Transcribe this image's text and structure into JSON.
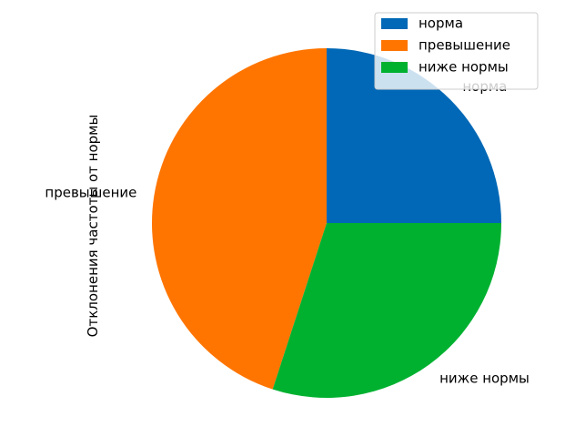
{
  "chart_data": {
    "type": "pie",
    "title": "",
    "ylabel": "Отклонения частоты от нормы",
    "legend_position": "top-right",
    "slices": [
      {
        "label": "норма",
        "value": 25,
        "color": "#0068B6"
      },
      {
        "label": "превышение",
        "value": 45,
        "color": "#FF7500"
      },
      {
        "label": "ниже нормы",
        "value": 30,
        "color": "#00B130"
      }
    ]
  }
}
